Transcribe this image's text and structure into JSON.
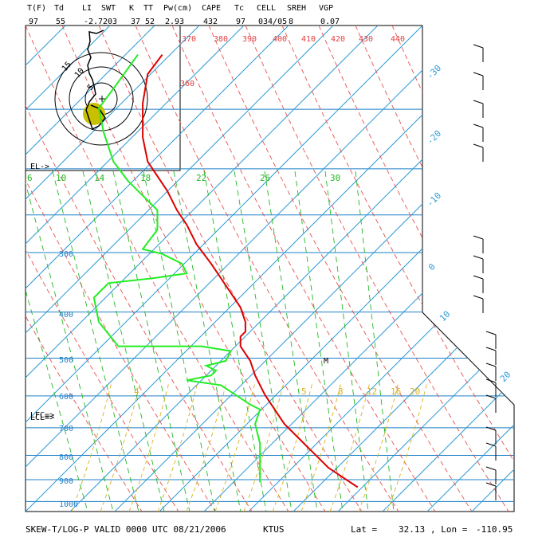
{
  "header": {
    "columns": [
      {
        "label": "T(F)",
        "value": "97"
      },
      {
        "label": "Td",
        "value": "55"
      },
      {
        "label": "LI",
        "value": "-2.7"
      },
      {
        "label": "SWT",
        "value": "203"
      },
      {
        "label": "K",
        "value": "37"
      },
      {
        "label": "TT",
        "value": "52"
      },
      {
        "label": "Pw(cm)",
        "value": "2.93"
      },
      {
        "label": "CAPE",
        "value": "432"
      },
      {
        "label": "Tc",
        "value": "97"
      },
      {
        "label": "CELL",
        "value": "034/05"
      },
      {
        "label": "SREH",
        "value": "8"
      },
      {
        "label": "VGP",
        "value": "0.07"
      }
    ]
  },
  "footer": {
    "title": "SKEW-T/LOG-P VALID 0000 UTC 08/21/2006",
    "station": "KTUS",
    "lat_label": "Lat =",
    "lat": "32.13",
    "lon_label": ", Lon =",
    "lon": "-110.95"
  },
  "annotations": {
    "el": "EL->",
    "lcl_lfc": "LCL=>",
    "lfc": "LFC=>",
    "max_marker": "M"
  },
  "colors": {
    "isobar": "#1e7fc8",
    "isotherm": "#2d9bd6",
    "dry_adiabat": "#e85050",
    "mixing_ratio": "#22b822",
    "moist_adiabat": "#d8b020",
    "temperature": "#dd0000",
    "dewpoint": "#22ee22",
    "hodograph_marker": "#c8c000"
  },
  "chart_data": {
    "type": "line",
    "title": "SKEW-T/LOG-P VALID 0000 UTC 08/21/2006",
    "pressure_levels": [
      300,
      400,
      500,
      600,
      700,
      800,
      900,
      1000
    ],
    "isotherm_labels": [
      -30,
      -20,
      -10,
      0,
      10,
      20
    ],
    "theta_labels": [
      360,
      370,
      380,
      390,
      400,
      410,
      420,
      430,
      440
    ],
    "mixing_ratio_labels": [
      6,
      10,
      14,
      18,
      22,
      26,
      30
    ],
    "moist_adiabat_labels": [
      4,
      5,
      8,
      12,
      16,
      20
    ],
    "series": [
      {
        "name": "Temperature",
        "points": [
          [
            0.28,
            0.06
          ],
          [
            0.25,
            0.1
          ],
          [
            0.24,
            0.16
          ],
          [
            0.24,
            0.23
          ],
          [
            0.25,
            0.28
          ],
          [
            0.27,
            0.31
          ],
          [
            0.29,
            0.34
          ],
          [
            0.31,
            0.38
          ],
          [
            0.33,
            0.41
          ],
          [
            0.35,
            0.45
          ],
          [
            0.38,
            0.49
          ],
          [
            0.4,
            0.52
          ],
          [
            0.42,
            0.55
          ],
          [
            0.44,
            0.58
          ],
          [
            0.45,
            0.61
          ],
          [
            0.45,
            0.63
          ],
          [
            0.44,
            0.64
          ],
          [
            0.44,
            0.66
          ],
          [
            0.46,
            0.69
          ],
          [
            0.47,
            0.72
          ],
          [
            0.49,
            0.76
          ],
          [
            0.51,
            0.79
          ],
          [
            0.53,
            0.82
          ],
          [
            0.56,
            0.85
          ],
          [
            0.59,
            0.88
          ],
          [
            0.62,
            0.91
          ],
          [
            0.65,
            0.93
          ],
          [
            0.68,
            0.95
          ]
        ]
      },
      {
        "name": "Dewpoint",
        "points": [
          [
            0.23,
            0.06
          ],
          [
            0.18,
            0.13
          ],
          [
            0.15,
            0.17
          ],
          [
            0.16,
            0.22
          ],
          [
            0.18,
            0.28
          ],
          [
            0.21,
            0.32
          ],
          [
            0.23,
            0.34
          ],
          [
            0.27,
            0.38
          ],
          [
            0.27,
            0.42
          ],
          [
            0.24,
            0.46
          ],
          [
            0.28,
            0.47
          ],
          [
            0.32,
            0.49
          ],
          [
            0.33,
            0.51
          ],
          [
            0.26,
            0.52
          ],
          [
            0.17,
            0.53
          ],
          [
            0.14,
            0.56
          ],
          [
            0.15,
            0.61
          ],
          [
            0.19,
            0.66
          ],
          [
            0.36,
            0.66
          ],
          [
            0.42,
            0.67
          ],
          [
            0.41,
            0.69
          ],
          [
            0.37,
            0.7
          ],
          [
            0.39,
            0.71
          ],
          [
            0.38,
            0.72
          ],
          [
            0.33,
            0.73
          ],
          [
            0.4,
            0.74
          ],
          [
            0.46,
            0.78
          ],
          [
            0.48,
            0.79
          ],
          [
            0.47,
            0.82
          ],
          [
            0.48,
            0.86
          ],
          [
            0.48,
            0.9
          ],
          [
            0.48,
            0.94
          ]
        ]
      }
    ],
    "hodograph": {
      "rings": [
        5,
        10,
        15
      ],
      "ring_labels": [
        "5",
        "10",
        "15"
      ]
    }
  }
}
